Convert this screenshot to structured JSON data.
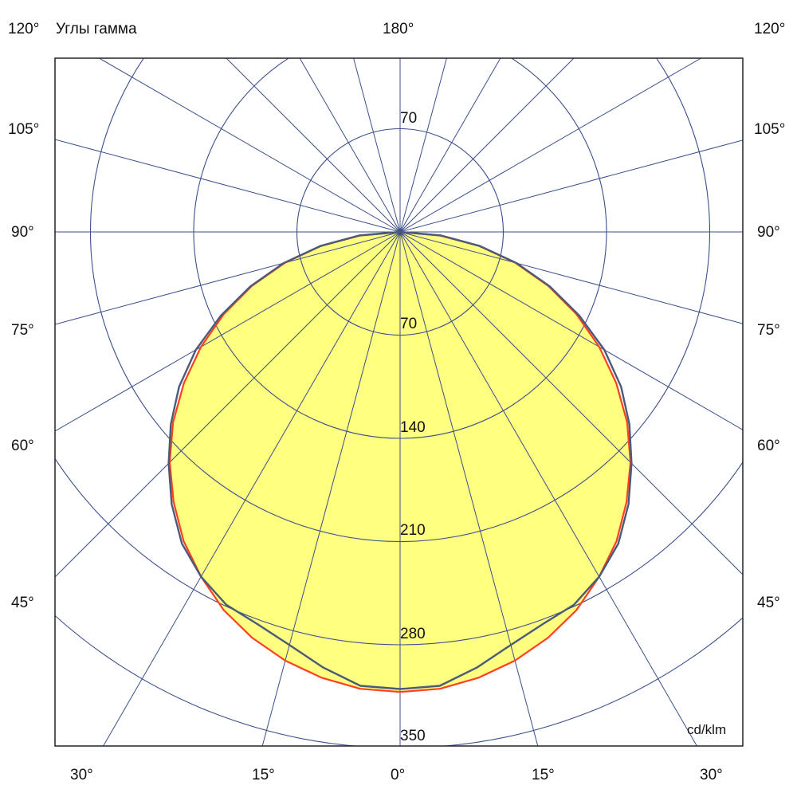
{
  "chart_data": {
    "type": "polar",
    "title": "Углы гамма",
    "unit_label": "cd/klm",
    "top_label": "180°",
    "side_labels_left": [
      "120°",
      "105°",
      "90°",
      "75°",
      "60°",
      "45°"
    ],
    "side_labels_right": [
      "120°",
      "105°",
      "90°",
      "75°",
      "60°",
      "45°"
    ],
    "bottom_labels": [
      "30°",
      "15°",
      "0°",
      "15°",
      "30°"
    ],
    "radial_ticks": [
      70,
      140,
      210,
      280,
      350
    ],
    "radial_tick_labels": [
      "70",
      "140",
      "210",
      "280",
      "350"
    ],
    "upper_tick_label": "70",
    "angle_grid_step_deg": 15,
    "grid": true,
    "gamma_deg": [
      0,
      5,
      10,
      15,
      20,
      25,
      30,
      35,
      40,
      45,
      50,
      55,
      60,
      65,
      70,
      75,
      80,
      85,
      90
    ],
    "series": [
      {
        "color": "#ff4020",
        "values": [
          312,
          311,
          307,
          301,
          293,
          283,
          270,
          256,
          239,
          221,
          201,
          179,
          156,
          132,
          107,
          81,
          54,
          27,
          0
        ]
      },
      {
        "color": "#4a5a78",
        "values": [
          310,
          309,
          300,
          290,
          283,
          279,
          270,
          258,
          241,
          222,
          203,
          183,
          160,
          134,
          108,
          82,
          55,
          28,
          0
        ]
      }
    ],
    "fill_color": "#ffff80",
    "grid_color": "#3c4f8c"
  }
}
